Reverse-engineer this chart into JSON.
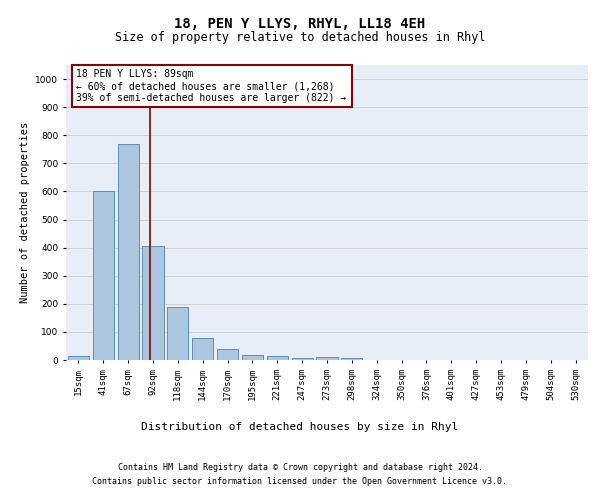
{
  "title": "18, PEN Y LLYS, RHYL, LL18 4EH",
  "subtitle": "Size of property relative to detached houses in Rhyl",
  "xlabel_bottom": "Distribution of detached houses by size in Rhyl",
  "ylabel": "Number of detached properties",
  "footer_line1": "Contains HM Land Registry data © Crown copyright and database right 2024.",
  "footer_line2": "Contains public sector information licensed under the Open Government Licence v3.0.",
  "categories": [
    "15sqm",
    "41sqm",
    "67sqm",
    "92sqm",
    "118sqm",
    "144sqm",
    "170sqm",
    "195sqm",
    "221sqm",
    "247sqm",
    "273sqm",
    "298sqm",
    "324sqm",
    "350sqm",
    "376sqm",
    "401sqm",
    "427sqm",
    "453sqm",
    "479sqm",
    "504sqm",
    "530sqm"
  ],
  "values": [
    15,
    600,
    770,
    405,
    190,
    78,
    38,
    18,
    16,
    8,
    12,
    6,
    0,
    0,
    0,
    0,
    0,
    0,
    0,
    0,
    0
  ],
  "bar_color": "#adc6e0",
  "bar_edge_color": "#5a8fc0",
  "vline_x": 2.88,
  "vline_color": "#8b0000",
  "annotation_text": "18 PEN Y LLYS: 89sqm\n← 60% of detached houses are smaller (1,268)\n39% of semi-detached houses are larger (822) →",
  "annotation_box_color": "white",
  "annotation_edge_color": "#8b0000",
  "ylim": [
    0,
    1050
  ],
  "yticks": [
    0,
    100,
    200,
    300,
    400,
    500,
    600,
    700,
    800,
    900,
    1000
  ],
  "grid_color": "#cccccc",
  "bg_color": "#e8eef8",
  "title_fontsize": 10,
  "subtitle_fontsize": 8.5,
  "tick_fontsize": 6.5,
  "ylabel_fontsize": 7.5,
  "annotation_fontsize": 7,
  "footer_fontsize": 6,
  "xlabel_fontsize": 8
}
